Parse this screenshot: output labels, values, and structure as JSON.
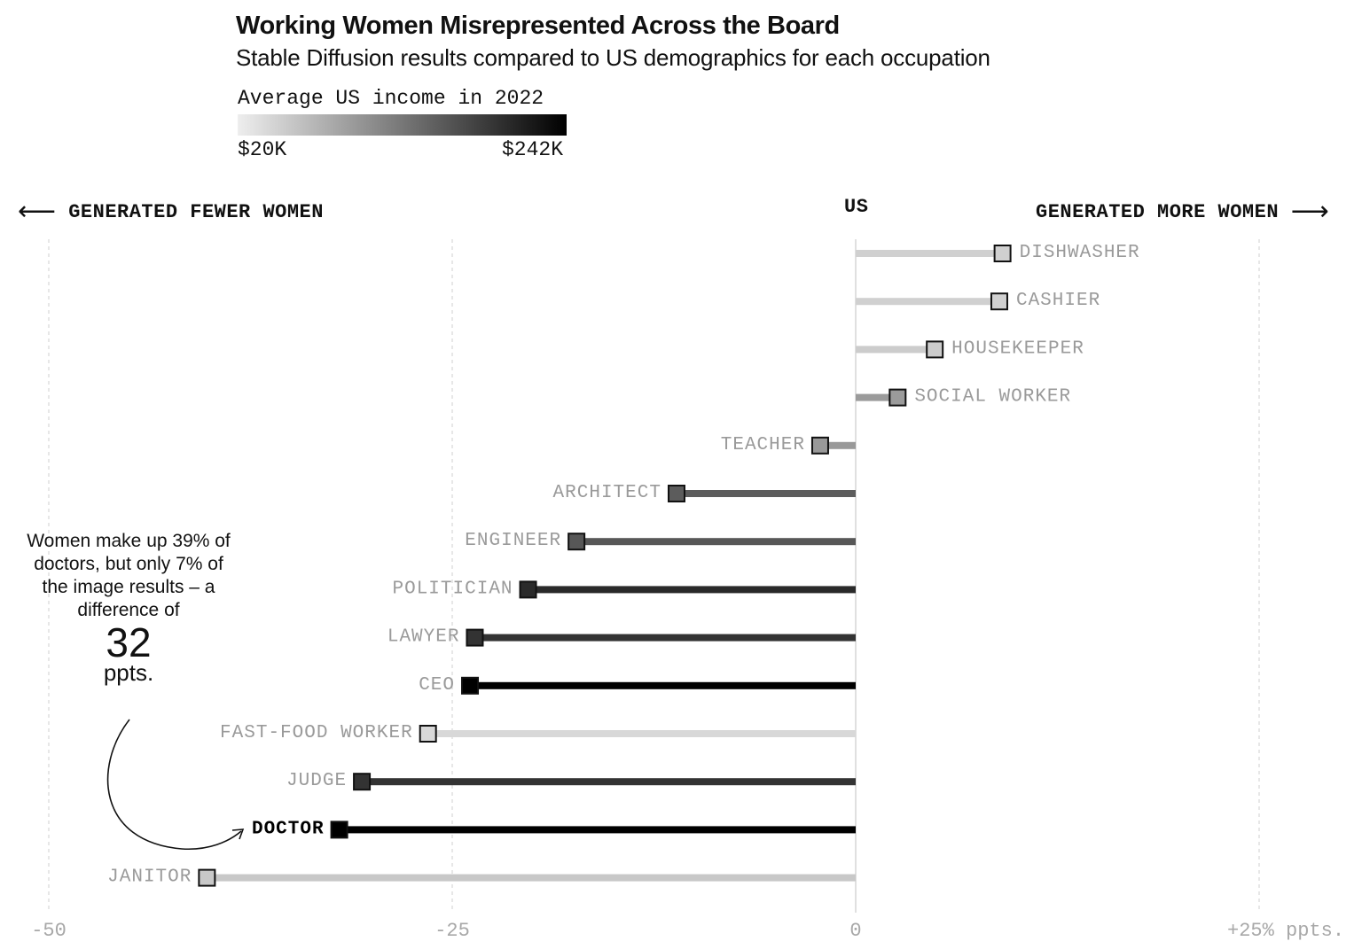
{
  "title": "Working Women Misrepresented Across the Board",
  "subtitle": "Stable Diffusion results compared to US demographics for each occupation",
  "legend": {
    "title": "Average US income in 2022",
    "min_label": "$20K",
    "max_label": "$242K",
    "color_low": "#eeeeee",
    "color_high": "#000000"
  },
  "direction": {
    "left": "GENERATED FEWER WOMEN",
    "right": "GENERATED MORE WOMEN",
    "center": "US"
  },
  "annotation": {
    "text": "Women make up 39% of doctors, but only 7% of the image results – a difference of",
    "value": "32",
    "unit": "ppts."
  },
  "chart_data": {
    "type": "dot-bar",
    "x_axis": {
      "range": [
        -50,
        25
      ],
      "ticks": [
        -50,
        -25,
        0,
        25
      ],
      "tick_labels": [
        "-50",
        "-25",
        "0",
        "+25% ppts."
      ]
    },
    "series": [
      {
        "occupation": "DISHWASHER",
        "value": 9.1,
        "shade": "#d0d0d0"
      },
      {
        "occupation": "CASHIER",
        "value": 8.9,
        "shade": "#d0d0d0"
      },
      {
        "occupation": "HOUSEKEEPER",
        "value": 4.9,
        "shade": "#cccccc"
      },
      {
        "occupation": "SOCIAL WORKER",
        "value": 2.6,
        "shade": "#9b9b9b"
      },
      {
        "occupation": "TEACHER",
        "value": -2.2,
        "shade": "#999999"
      },
      {
        "occupation": "ARCHITECT",
        "value": -11.1,
        "shade": "#5c5c5c"
      },
      {
        "occupation": "ENGINEER",
        "value": -17.3,
        "shade": "#575757"
      },
      {
        "occupation": "POLITICIAN",
        "value": -20.3,
        "shade": "#2a2a2a"
      },
      {
        "occupation": "LAWYER",
        "value": -23.6,
        "shade": "#333333"
      },
      {
        "occupation": "CEO",
        "value": -23.9,
        "shade": "#000000"
      },
      {
        "occupation": "FAST-FOOD WORKER",
        "value": -26.5,
        "shade": "#d8d8d8"
      },
      {
        "occupation": "JUDGE",
        "value": -30.6,
        "shade": "#333333"
      },
      {
        "occupation": "DOCTOR",
        "value": -32,
        "shade": "#000000",
        "highlight": true
      },
      {
        "occupation": "JANITOR",
        "value": -40.2,
        "shade": "#c8c8c8"
      }
    ]
  }
}
